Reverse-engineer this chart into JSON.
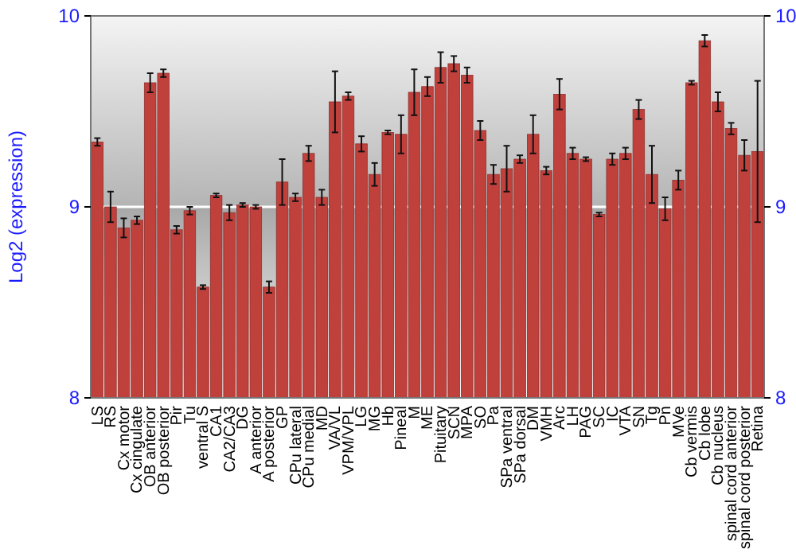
{
  "chart_data": {
    "type": "bar",
    "ylabel": "Log2 (expression)",
    "categories": [
      "LS",
      "RS",
      "Cx motor",
      "Cx cingulate",
      "OB anterior",
      "OB posterior",
      "Pir",
      "Tu",
      "ventral S",
      "CA1",
      "CA2/CA3",
      "DG",
      "A anterior",
      "A posterior",
      "GP",
      "CPu lateral",
      "CPu medial",
      "MD",
      "VA/VL",
      "VPM/VPL",
      "LG",
      "MG",
      "Hb",
      "Pineal",
      "M",
      "ME",
      "Pituitary",
      "SCN",
      "MPA",
      "SO",
      "Pa",
      "SPa ventral",
      "SPa dorsal",
      "DM",
      "VMH",
      "Arc",
      "LH",
      "PAG",
      "SC",
      "IC",
      "VTA",
      "SN",
      "Tg",
      "Pn",
      "MVe",
      "Cb vermis",
      "Cb lobe",
      "Cb nucleus",
      "spinal cord anterior",
      "spinal cord posterior",
      "Retina"
    ],
    "values": [
      9.34,
      9.0,
      8.89,
      8.93,
      9.65,
      9.7,
      8.88,
      8.98,
      8.58,
      9.06,
      8.97,
      9.01,
      9.0,
      8.58,
      9.13,
      9.05,
      9.28,
      9.05,
      9.55,
      9.58,
      9.33,
      9.17,
      9.39,
      9.38,
      9.6,
      9.63,
      9.73,
      9.75,
      9.69,
      9.4,
      9.17,
      9.2,
      9.25,
      9.38,
      9.19,
      9.59,
      9.28,
      9.25,
      8.96,
      9.25,
      9.28,
      9.51,
      9.17,
      8.99,
      9.14,
      9.65,
      9.87,
      9.55,
      9.41,
      9.27,
      9.29
    ],
    "errors": [
      0.02,
      0.08,
      0.05,
      0.02,
      0.05,
      0.02,
      0.02,
      0.02,
      0.01,
      0.01,
      0.04,
      0.01,
      0.01,
      0.03,
      0.12,
      0.02,
      0.04,
      0.04,
      0.16,
      0.02,
      0.04,
      0.06,
      0.01,
      0.1,
      0.12,
      0.05,
      0.08,
      0.04,
      0.04,
      0.05,
      0.05,
      0.12,
      0.02,
      0.1,
      0.02,
      0.08,
      0.03,
      0.01,
      0.01,
      0.03,
      0.03,
      0.05,
      0.15,
      0.06,
      0.05,
      0.01,
      0.03,
      0.05,
      0.03,
      0.08,
      0.37
    ],
    "color": "#c0403c",
    "ylim": [
      8,
      10
    ],
    "yticks": [
      8,
      9,
      10
    ],
    "y2lim": [
      8,
      10
    ],
    "y2ticks": [
      8,
      9,
      10
    ],
    "grid": "y"
  }
}
